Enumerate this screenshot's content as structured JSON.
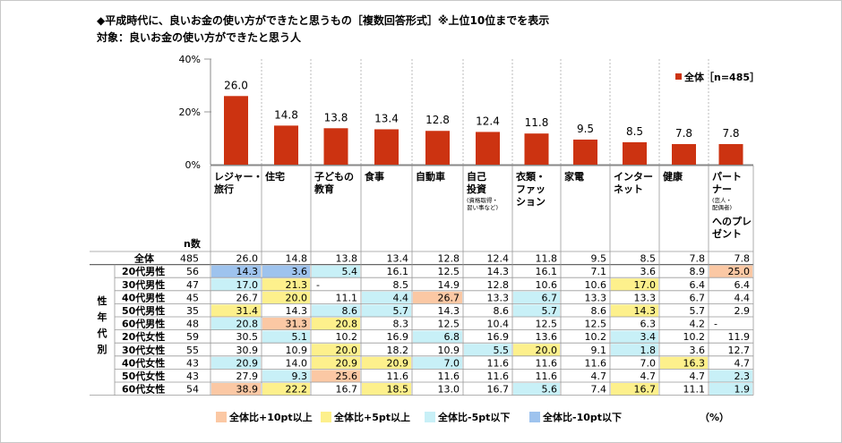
{
  "title": "◆平成時代に、良いお金の使い方ができたと思うもの［複数回答形式］※上位10位までを表示",
  "subtitle": "対象：良いお金の使い方ができたと思う人",
  "chart_data": {
    "type": "bar",
    "categories": [
      "レジャー・旅行",
      "住宅",
      "子どもの教育",
      "食事",
      "自動車",
      "自己投資",
      "衣類・ファッション",
      "家電",
      "インターネット",
      "健康",
      "パートナーへのプレゼント"
    ],
    "category_labels": [
      {
        "lines": [
          "レジャー・",
          "旅行"
        ]
      },
      {
        "lines": [
          "住宅"
        ]
      },
      {
        "lines": [
          "子どもの",
          "教育"
        ]
      },
      {
        "lines": [
          "食事"
        ]
      },
      {
        "lines": [
          "自動車"
        ]
      },
      {
        "lines": [
          "自己",
          "投資"
        ],
        "note": [
          "(資格取得・",
          "習い事など)"
        ]
      },
      {
        "lines": [
          "衣類・",
          "ファッ",
          "ション"
        ]
      },
      {
        "lines": [
          "家電"
        ]
      },
      {
        "lines": [
          "インター",
          "ネット"
        ]
      },
      {
        "lines": [
          "健康"
        ]
      },
      {
        "lines": [
          "パート",
          "ナー"
        ],
        "note": [
          "(恋人・",
          "配偶者)"
        ],
        "lines2": [
          "へのプレ",
          "ゼント"
        ]
      }
    ],
    "series": [
      {
        "name": "全体［n=485］",
        "values": [
          26.0,
          14.8,
          13.8,
          13.4,
          12.8,
          12.4,
          11.8,
          9.5,
          8.5,
          7.8,
          7.8
        ]
      }
    ],
    "value_labels": [
      "26.0",
      "14.8",
      "13.8",
      "13.4",
      "12.8",
      "12.4",
      "11.8",
      "9.5",
      "8.5",
      "7.8",
      "7.8"
    ],
    "ylim": [
      0,
      40
    ],
    "yticks": [
      "0%",
      "20%",
      "40%"
    ],
    "legend_position": "top-right",
    "bar_color": "#cc3311",
    "table": {
      "n_header": "n数",
      "side_label": [
        "性",
        "年",
        "代",
        "別"
      ],
      "rows": [
        {
          "label": "全体",
          "n": "485",
          "values": [
            "26.0",
            "14.8",
            "13.8",
            "13.4",
            "12.8",
            "12.4",
            "11.8",
            "9.5",
            "8.5",
            "7.8",
            "7.8"
          ],
          "marks": [
            0,
            0,
            0,
            0,
            0,
            0,
            0,
            0,
            0,
            0,
            0
          ]
        },
        {
          "label": "20代男性",
          "n": "56",
          "values": [
            "14.3",
            "3.6",
            "5.4",
            "16.1",
            "12.5",
            "14.3",
            "16.1",
            "7.1",
            "3.6",
            "8.9",
            "25.0"
          ],
          "marks": [
            -2,
            -2,
            -1,
            0,
            0,
            0,
            0,
            0,
            0,
            0,
            2
          ]
        },
        {
          "label": "30代男性",
          "n": "47",
          "values": [
            "17.0",
            "21.3",
            "-",
            "8.5",
            "14.9",
            "12.8",
            "10.6",
            "10.6",
            "17.0",
            "6.4",
            "6.4"
          ],
          "marks": [
            -1,
            1,
            0,
            0,
            0,
            0,
            0,
            0,
            1,
            0,
            0
          ]
        },
        {
          "label": "40代男性",
          "n": "45",
          "values": [
            "26.7",
            "20.0",
            "11.1",
            "4.4",
            "26.7",
            "13.3",
            "6.7",
            "13.3",
            "13.3",
            "6.7",
            "4.4"
          ],
          "marks": [
            0,
            1,
            0,
            -1,
            2,
            0,
            -1,
            0,
            0,
            0,
            0
          ]
        },
        {
          "label": "50代男性",
          "n": "35",
          "values": [
            "31.4",
            "14.3",
            "8.6",
            "5.7",
            "14.3",
            "8.6",
            "5.7",
            "8.6",
            "14.3",
            "5.7",
            "2.9"
          ],
          "marks": [
            1,
            0,
            -1,
            -1,
            0,
            0,
            -1,
            0,
            1,
            0,
            0
          ]
        },
        {
          "label": "60代男性",
          "n": "48",
          "values": [
            "20.8",
            "31.3",
            "20.8",
            "8.3",
            "12.5",
            "10.4",
            "12.5",
            "12.5",
            "6.3",
            "4.2",
            "-"
          ],
          "marks": [
            -1,
            2,
            1,
            0,
            0,
            0,
            0,
            0,
            0,
            0,
            0
          ]
        },
        {
          "label": "20代女性",
          "n": "59",
          "values": [
            "30.5",
            "5.1",
            "10.2",
            "16.9",
            "6.8",
            "16.9",
            "13.6",
            "10.2",
            "3.4",
            "10.2",
            "11.9"
          ],
          "marks": [
            0,
            -1,
            0,
            0,
            -1,
            0,
            0,
            0,
            -1,
            0,
            0
          ]
        },
        {
          "label": "30代女性",
          "n": "55",
          "values": [
            "30.9",
            "10.9",
            "20.0",
            "18.2",
            "10.9",
            "5.5",
            "20.0",
            "9.1",
            "1.8",
            "3.6",
            "12.7"
          ],
          "marks": [
            0,
            0,
            1,
            0,
            0,
            -1,
            1,
            0,
            -1,
            0,
            0
          ]
        },
        {
          "label": "40代女性",
          "n": "43",
          "values": [
            "20.9",
            "14.0",
            "20.9",
            "20.9",
            "7.0",
            "11.6",
            "11.6",
            "11.6",
            "7.0",
            "16.3",
            "4.7"
          ],
          "marks": [
            -1,
            0,
            1,
            1,
            -1,
            0,
            0,
            0,
            0,
            1,
            0
          ]
        },
        {
          "label": "50代女性",
          "n": "43",
          "values": [
            "27.9",
            "9.3",
            "25.6",
            "11.6",
            "11.6",
            "11.6",
            "11.6",
            "4.7",
            "4.7",
            "4.7",
            "2.3"
          ],
          "marks": [
            0,
            -1,
            2,
            0,
            0,
            0,
            0,
            0,
            0,
            0,
            -1
          ]
        },
        {
          "label": "60代女性",
          "n": "54",
          "values": [
            "38.9",
            "22.2",
            "16.7",
            "18.5",
            "13.0",
            "16.7",
            "5.6",
            "7.4",
            "16.7",
            "11.1",
            "1.9"
          ],
          "marks": [
            2,
            1,
            0,
            1,
            0,
            0,
            -1,
            0,
            1,
            0,
            -1
          ]
        }
      ]
    }
  },
  "foot_legend": [
    {
      "label": "全体比+10pt以上",
      "color": "#fbc8a4"
    },
    {
      "label": "全体比+5pt以上",
      "color": "#fdf08c"
    },
    {
      "label": "全体比-5pt以下",
      "color": "#c8f0f7"
    },
    {
      "label": "全体比-10pt以下",
      "color": "#9ec3ee"
    }
  ],
  "unit_label": "（%）"
}
